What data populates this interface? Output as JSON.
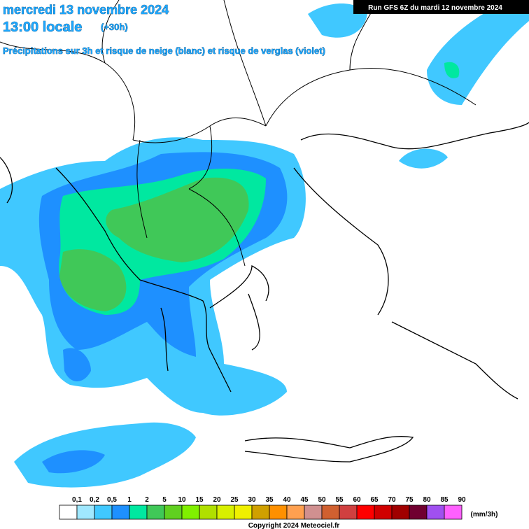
{
  "header": {
    "date": "mercredi 13 novembre 2024",
    "time": "13:00 locale",
    "offset": "(+30h)",
    "subtitle": "Précipitations sur 3h et risque de neige (blanc) et risque de verglas (violet)",
    "run": "Run GFS 6Z du mardi 12 novembre 2024"
  },
  "legend": {
    "labels": [
      "0,1",
      "0,2",
      "0,5",
      "1",
      "2",
      "5",
      "10",
      "15",
      "20",
      "25",
      "30",
      "35",
      "40",
      "45",
      "50",
      "55",
      "60",
      "65",
      "70",
      "75",
      "80",
      "85",
      "90"
    ],
    "colors": [
      "#ffffff",
      "#a0e8ff",
      "#40c8ff",
      "#1e90ff",
      "#00e8a0",
      "#40c858",
      "#60d020",
      "#80f000",
      "#b0e000",
      "#d8f000",
      "#f0f000",
      "#d0a000",
      "#ff9000",
      "#ffa050",
      "#d09090",
      "#d06030",
      "#d04040",
      "#ff0000",
      "#d00000",
      "#a00000",
      "#700030",
      "#a050f0",
      "#ff60ff"
    ],
    "unit": "(mm/3h)"
  },
  "footer": {
    "copyright": "Copyright 2024 Meteociel.fr"
  }
}
